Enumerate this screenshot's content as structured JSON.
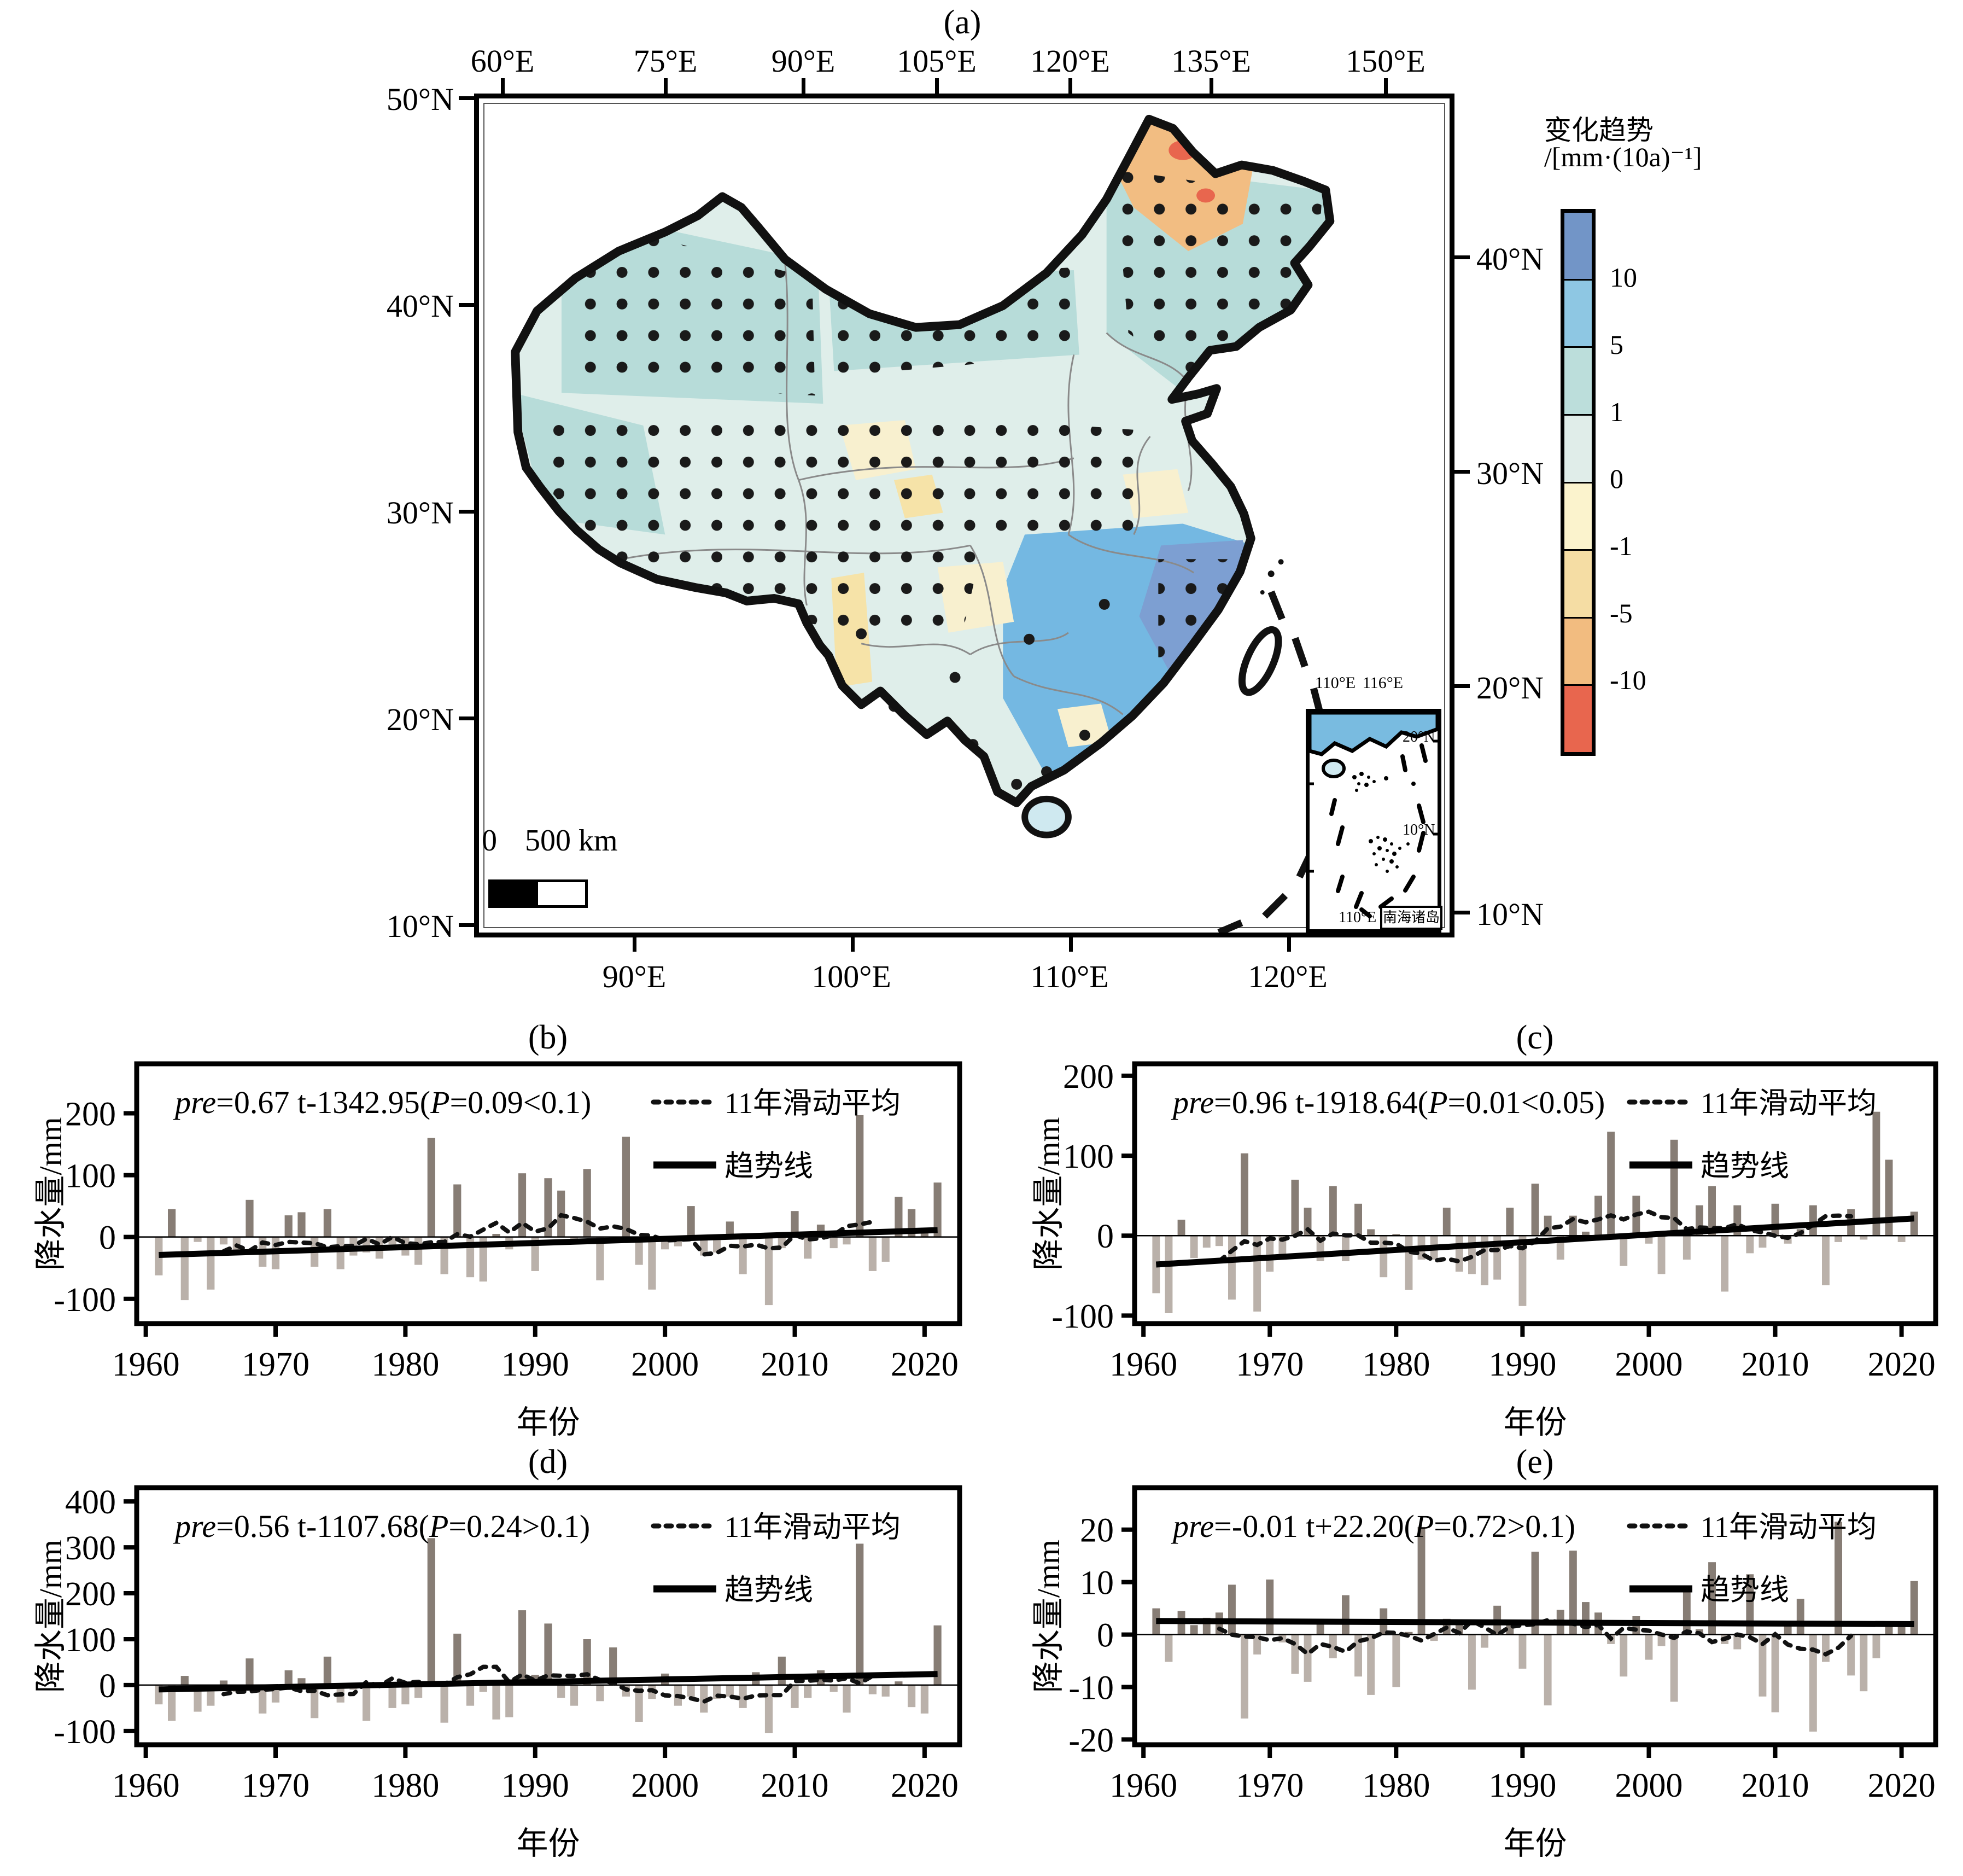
{
  "panels": {
    "a": "(a)",
    "b": "(b)",
    "c": "(c)",
    "d": "(d)",
    "e": "(e)"
  },
  "map": {
    "top_axis": [
      "60°E",
      "75°E",
      "90°E",
      "105°E",
      "120°E",
      "135°E",
      "150°E"
    ],
    "left_axis": [
      "50°N",
      "40°N",
      "30°N",
      "20°N",
      "10°N"
    ],
    "right_axis": [
      "40°N",
      "30°N",
      "20°N",
      "10°N"
    ],
    "bottom_axis": [
      "90°E",
      "100°E",
      "110°E",
      "120°E"
    ],
    "scalebar": {
      "zero": "0",
      "label": "500 km"
    },
    "inset": {
      "top_labels": [
        "110°E",
        "116°E"
      ],
      "right_labels": [
        "20°N",
        "10°N"
      ],
      "bottom_label": "110°E",
      "box_label": "南海诸岛"
    },
    "colorbar": {
      "title_line1": "变化趋势",
      "title_line2": "/[mm·(10a)⁻¹]",
      "tick_labels": [
        "10",
        "5",
        "1",
        "0",
        "-1",
        "-5",
        "-10"
      ],
      "segment_colors": [
        "#7295c7",
        "#8ec7e3",
        "#bcdedb",
        "#e0ede9",
        "#fbf3cd",
        "#f5dda4",
        "#f2bc80",
        "#e8664e"
      ]
    },
    "region_colors": {
      "base": "#dfeeea",
      "cyan": "#b7dcd9",
      "blue": "#74b8e2",
      "dark_blue": "#7d9fd2",
      "cream": "#f8f0cf",
      "yellow": "#f6e3a8",
      "orange": "#f2bd82",
      "red": "#e8664e"
    }
  },
  "charts_common": {
    "ylabel": "降水量/mm",
    "xlabel": "年份",
    "legend_ma": "11年滑动平均",
    "legend_trend": "趋势线",
    "pos_color": "#877d75",
    "neg_color": "#bab1aa"
  },
  "chart_data": [
    {
      "id": "b",
      "type": "bar",
      "title": "(b)",
      "equation_parts": [
        "pre",
        "=0.67 t-1342.95(",
        "P",
        "=0.09<0.1)"
      ],
      "start_year": 1961,
      "xlim": [
        1959.3,
        2022.7
      ],
      "ylim": [
        -140,
        280
      ],
      "yticks": [
        200,
        100,
        0,
        -100
      ],
      "xticks": [
        1960,
        1970,
        1980,
        1990,
        2000,
        2010,
        2020
      ],
      "trend": {
        "slope": 0.67,
        "intercept": -1342.95
      },
      "frame": {
        "l": 190,
        "t": 85,
        "r": 1695,
        "b": 560
      },
      "values": [
        -62,
        45,
        -102,
        -8,
        -85,
        -12,
        -25,
        60,
        -48,
        -52,
        35,
        40,
        -48,
        45,
        -52,
        -30,
        -25,
        -35,
        -12,
        -30,
        -45,
        160,
        -60,
        85,
        -65,
        -72,
        5,
        -20,
        103,
        -55,
        95,
        75,
        -10,
        110,
        -70,
        -8,
        162,
        -45,
        -85,
        -20,
        -15,
        50,
        -30,
        -25,
        25,
        -60,
        5,
        -110,
        -18,
        42,
        -35,
        20,
        -18,
        -12,
        197,
        -55,
        -40,
        65,
        45,
        15,
        88
      ]
    },
    {
      "id": "c",
      "type": "bar",
      "title": "(c)",
      "equation_parts": [
        "pre",
        "=0.96 t-1918.64(",
        "P",
        "=0.01<0.05)"
      ],
      "start_year": 1961,
      "xlim": [
        1959.3,
        2022.7
      ],
      "ylim": [
        -110,
        215
      ],
      "yticks": [
        200,
        100,
        0,
        -100
      ],
      "xticks": [
        1960,
        1970,
        1980,
        1990,
        2000,
        2010,
        2020
      ],
      "trend": {
        "slope": 0.96,
        "intercept": -1918.64
      },
      "frame": {
        "l": 190,
        "t": 85,
        "r": 1655,
        "b": 560
      },
      "values": [
        -72,
        -97,
        20,
        -28,
        -15,
        -13,
        -80,
        103,
        -95,
        -45,
        -28,
        70,
        35,
        -32,
        62,
        -32,
        40,
        8,
        -52,
        2,
        -68,
        -30,
        -30,
        35,
        -45,
        -48,
        -62,
        -55,
        35,
        -88,
        65,
        25,
        -30,
        25,
        5,
        50,
        130,
        -38,
        50,
        -10,
        -48,
        120,
        -30,
        38,
        62,
        -70,
        38,
        -22,
        -15,
        40,
        -10,
        8,
        38,
        -62,
        -8,
        33,
        -5,
        155,
        95,
        -8,
        30
      ]
    },
    {
      "id": "d",
      "type": "bar",
      "title": "(d)",
      "equation_parts": [
        "pre",
        "=0.56 t-1107.68(",
        "P",
        "=0.24>0.1)"
      ],
      "start_year": 1961,
      "xlim": [
        1959.3,
        2022.7
      ],
      "ylim": [
        -130,
        430
      ],
      "yticks": [
        400,
        300,
        200,
        100,
        0,
        -100
      ],
      "xticks": [
        1960,
        1970,
        1980,
        1990,
        2000,
        2010,
        2020
      ],
      "trend": {
        "slope": 0.56,
        "intercept": -1107.68
      },
      "frame": {
        "l": 190,
        "t": 85,
        "r": 1695,
        "b": 555
      },
      "values": [
        -42,
        -78,
        20,
        -58,
        -45,
        10,
        -15,
        58,
        -62,
        -38,
        32,
        15,
        -72,
        62,
        -38,
        -10,
        -78,
        -5,
        -50,
        -42,
        -28,
        320,
        -82,
        112,
        -45,
        -15,
        -75,
        -70,
        163,
        22,
        134,
        -28,
        -45,
        100,
        -35,
        82,
        -25,
        -80,
        -30,
        25,
        -45,
        -25,
        -60,
        -30,
        -25,
        -50,
        28,
        -105,
        62,
        -50,
        -28,
        32,
        -15,
        -60,
        308,
        -20,
        -25,
        8,
        -48,
        -62,
        130
      ]
    },
    {
      "id": "e",
      "type": "bar",
      "title": "(e)",
      "equation_parts": [
        "pre",
        "=-0.01 t+22.20(",
        "P",
        "=0.72>0.1)"
      ],
      "start_year": 1961,
      "xlim": [
        1959.3,
        2022.7
      ],
      "ylim": [
        -21,
        28
      ],
      "yticks": [
        20,
        10,
        0,
        -10,
        -20
      ],
      "xticks": [
        1960,
        1970,
        1980,
        1990,
        2000,
        2010,
        2020
      ],
      "trend": {
        "slope": -0.01,
        "intercept": 22.2
      },
      "frame": {
        "l": 190,
        "t": 85,
        "r": 1655,
        "b": 555
      },
      "values": [
        5,
        -5.2,
        4.5,
        1.8,
        3.2,
        4.2,
        9.5,
        -16,
        -3.8,
        10.5,
        -1.5,
        -7.5,
        -9,
        3,
        -4.5,
        7.5,
        -8,
        -11.5,
        5,
        -10,
        0.5,
        20.5,
        -1.2,
        3,
        2.2,
        -10.5,
        -2.5,
        5.5,
        2.2,
        -6.5,
        15.8,
        -13.5,
        4.7,
        16,
        6.2,
        4.2,
        -1.8,
        -8,
        3.5,
        -4.8,
        -2.2,
        -12.8,
        9,
        1,
        13.8,
        -1.8,
        -2.8,
        11.5,
        -11.8,
        -14.8,
        2,
        6.8,
        -18.5,
        -5.2,
        21.5,
        -7.8,
        -10.8,
        -4.5,
        1.8,
        2,
        10.2
      ]
    }
  ]
}
